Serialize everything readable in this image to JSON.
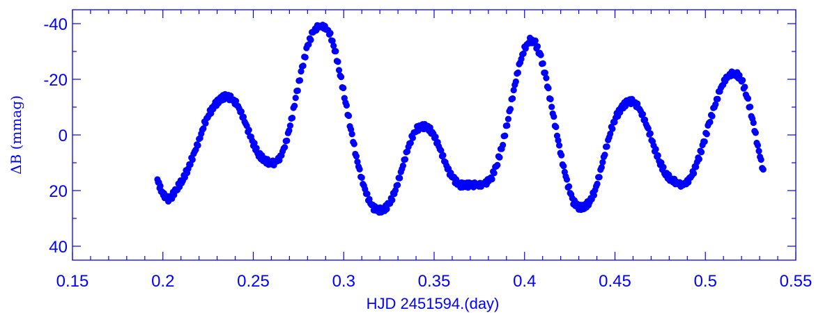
{
  "chart_data": {
    "type": "scatter",
    "title": "",
    "xlabel": "HJD 2451594.(day)",
    "ylabel": "ΔB  (mmag)",
    "xlim": [
      0.15,
      0.55
    ],
    "ylim": [
      45,
      -45
    ],
    "y_inverted": true,
    "grid": false,
    "legend": "none",
    "x_ticks": [
      "0.15",
      "0.2",
      "0.25",
      "0.3",
      "0.35",
      "0.4",
      "0.45",
      "0.5",
      "0.55"
    ],
    "y_ticks": [
      "-40",
      "-20",
      "0",
      "20",
      "40"
    ],
    "marker_color": "#0000ff",
    "series": [
      {
        "x": [
          0.197,
          0.199,
          0.201,
          0.203,
          0.205,
          0.208,
          0.211,
          0.214,
          0.217,
          0.22,
          0.223,
          0.226,
          0.229,
          0.232,
          0.235,
          0.238,
          0.241,
          0.244,
          0.247,
          0.25,
          0.253,
          0.256,
          0.259,
          0.262,
          0.265,
          0.268,
          0.271,
          0.274,
          0.277,
          0.28,
          0.283,
          0.286,
          0.289,
          0.292,
          0.295,
          0.298,
          0.301,
          0.304,
          0.307,
          0.31,
          0.313,
          0.316,
          0.319,
          0.322,
          0.325,
          0.328,
          0.331,
          0.334,
          0.337,
          0.34,
          0.343,
          0.346,
          0.349,
          0.352,
          0.355,
          0.358,
          0.361,
          0.364,
          0.367,
          0.37,
          0.373,
          0.376,
          0.379,
          0.382,
          0.385,
          0.388,
          0.391,
          0.394,
          0.397,
          0.4,
          0.403,
          0.406,
          0.409,
          0.412,
          0.415,
          0.418,
          0.421,
          0.424,
          0.427,
          0.43,
          0.433,
          0.436,
          0.439,
          0.442,
          0.445,
          0.448,
          0.451,
          0.454,
          0.457,
          0.46,
          0.463,
          0.466,
          0.469,
          0.472,
          0.475,
          0.478,
          0.481,
          0.484,
          0.487,
          0.49,
          0.493,
          0.496,
          0.499,
          0.502,
          0.505,
          0.508,
          0.511,
          0.514,
          0.517,
          0.52,
          0.523,
          0.526,
          0.529,
          0.532
        ],
        "y": [
          16,
          20,
          22,
          23,
          22,
          19,
          16,
          12,
          7,
          2,
          -4,
          -8,
          -11,
          -13,
          -14,
          -13,
          -11,
          -7,
          -2,
          3,
          7,
          9,
          10,
          10,
          8,
          3,
          -5,
          -15,
          -24,
          -32,
          -37,
          -39,
          -39,
          -37,
          -31,
          -22,
          -12,
          -2,
          8,
          16,
          22,
          26,
          27,
          27,
          25,
          21,
          15,
          8,
          2,
          -2,
          -3,
          -3,
          -1,
          3,
          8,
          13,
          16,
          18,
          18,
          18,
          18,
          18,
          17,
          15,
          10,
          3,
          -6,
          -16,
          -25,
          -31,
          -34,
          -33,
          -28,
          -20,
          -10,
          0,
          10,
          18,
          24,
          26,
          26,
          24,
          20,
          13,
          5,
          -2,
          -7,
          -10,
          -12,
          -12,
          -10,
          -6,
          -1,
          5,
          10,
          14,
          16,
          17,
          18,
          17,
          14,
          9,
          3,
          -4,
          -10,
          -16,
          -20,
          -22,
          -22,
          -20,
          -14,
          -6,
          4,
          13
        ]
      }
    ]
  }
}
